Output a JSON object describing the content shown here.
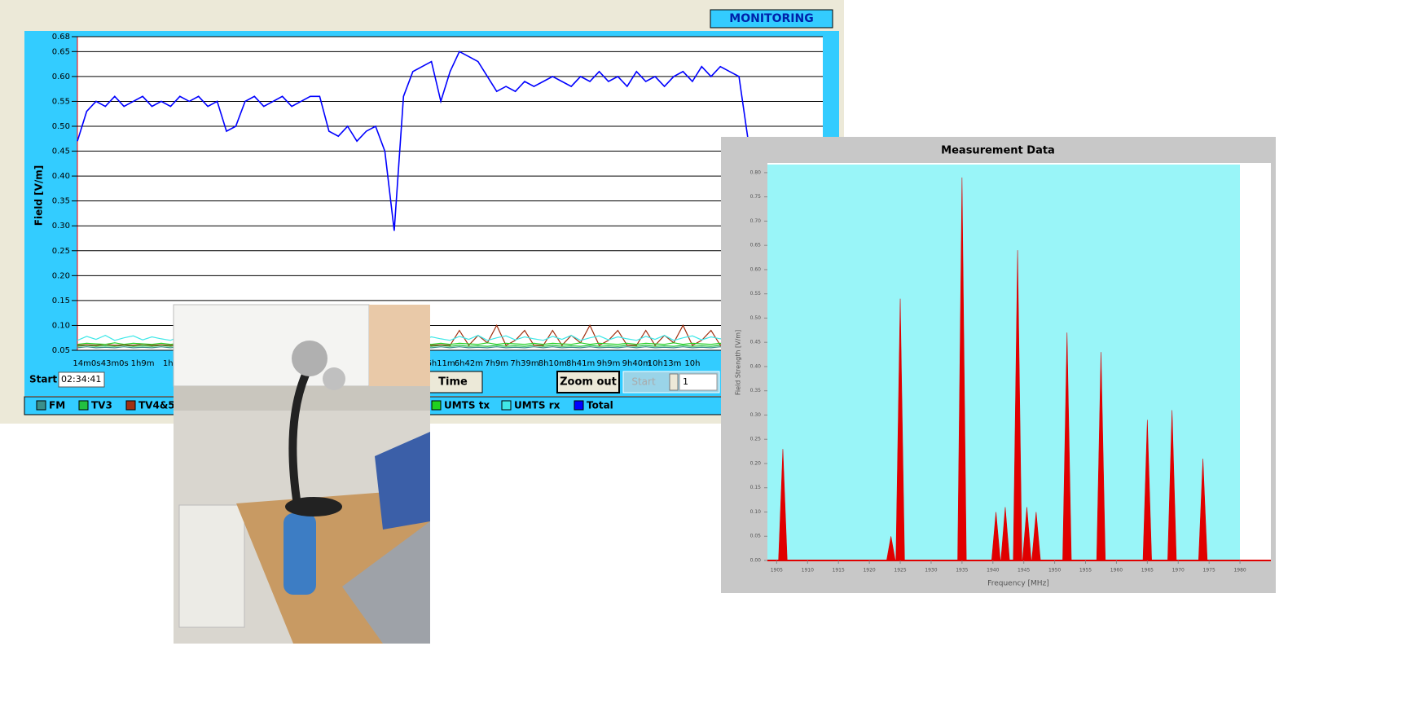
{
  "monitor": {
    "title": "MONITORING",
    "start_label": "Start",
    "start_time": "02:34:41",
    "time_button": "Time",
    "zoom_button": "Zoom out",
    "start_button": "Start",
    "spin_value": "1"
  },
  "chart_data": [
    {
      "type": "line",
      "y_label": "Field [V/m]",
      "categories": [
        null,
        "14m0s",
        null,
        null,
        "43m0s",
        null,
        null,
        "1h9m",
        null,
        null,
        "1h4",
        null,
        null,
        null,
        null,
        null,
        null,
        null,
        null,
        null,
        null,
        null,
        null,
        null,
        null,
        null,
        null,
        null,
        null,
        null,
        null,
        null,
        null,
        null,
        null,
        null,
        null,
        null,
        null,
        "6h11m",
        null,
        null,
        "6h42m",
        null,
        null,
        "7h9m",
        null,
        null,
        "7h39m",
        null,
        null,
        "8h10m",
        null,
        null,
        "8h41m",
        null,
        null,
        "9h9m",
        null,
        null,
        "9h40m",
        null,
        null,
        "10h13m",
        null,
        null,
        "10h",
        null,
        null,
        null,
        null,
        null,
        null,
        null,
        null,
        null,
        null,
        null,
        null,
        null
      ],
      "ylim": [
        0.05,
        0.68
      ],
      "yticks": [
        0.05,
        {
          "value": 0.1,
          "label": "0.10"
        },
        0.15,
        {
          "value": 0.2,
          "label": "0.20"
        },
        0.25,
        {
          "value": 0.3,
          "label": "0.30"
        },
        0.35,
        {
          "value": 0.4,
          "label": "0.40"
        },
        0.45,
        {
          "value": 0.5,
          "label": "0.50"
        },
        0.55,
        {
          "value": 0.6,
          "label": "0.60"
        },
        0.65,
        0.68
      ],
      "grid": true,
      "series": [
        {
          "name": "FM",
          "color": "#3a8f8a",
          "values": [
            0.055,
            0.057,
            0.055,
            0.056,
            0.055,
            0.057,
            0.055,
            0.056,
            0.055,
            0.057,
            0.055,
            0.057,
            0.055,
            0.056,
            0.055,
            0.057,
            0.055,
            0.056,
            0.055,
            0.057,
            0.055,
            0.057,
            0.055,
            0.056,
            0.055,
            0.057,
            0.055,
            0.056,
            0.055,
            0.057,
            0.055,
            0.057,
            0.055,
            0.056,
            0.055,
            0.057,
            0.055,
            0.056,
            0.055,
            0.057,
            0.055,
            0.057,
            0.055,
            0.056,
            0.055,
            0.057,
            0.055,
            0.056,
            0.055,
            0.057,
            0.055,
            0.057,
            0.055,
            0.056,
            0.055,
            0.057,
            0.055,
            0.056,
            0.055,
            0.057,
            0.055,
            0.057,
            0.055,
            0.056,
            0.055,
            0.057,
            0.055,
            0.056,
            0.055,
            0.057,
            0.055,
            0.056,
            0.055,
            null,
            null,
            null,
            null,
            null,
            null,
            null
          ]
        },
        {
          "name": "TV3",
          "color": "#22c040",
          "values": [
            0.058,
            0.06,
            0.058,
            0.059,
            0.058,
            0.06,
            0.058,
            0.059,
            0.058,
            0.06,
            0.058,
            0.06,
            0.058,
            0.059,
            0.058,
            0.06,
            0.058,
            0.059,
            0.058,
            0.06,
            0.058,
            0.06,
            0.058,
            0.059,
            0.058,
            0.06,
            0.058,
            0.059,
            0.058,
            0.06,
            0.058,
            0.06,
            0.058,
            0.059,
            0.058,
            0.06,
            0.058,
            0.059,
            0.058,
            0.06,
            0.058,
            0.06,
            0.058,
            0.059,
            0.058,
            0.06,
            0.058,
            0.059,
            0.058,
            0.06,
            0.058,
            0.06,
            0.058,
            0.059,
            0.058,
            0.06,
            0.058,
            0.059,
            0.058,
            0.06,
            0.058,
            0.06,
            0.058,
            0.059,
            0.058,
            0.06,
            0.058,
            0.059,
            0.058,
            0.06,
            0.058,
            0.059,
            0.058,
            null,
            null,
            null,
            null,
            null,
            null,
            null
          ]
        },
        {
          "name": "TV4&5",
          "color": "#a03010",
          "values": [
            0.06,
            0.061,
            0.06,
            0.062,
            0.06,
            0.061,
            0.06,
            0.062,
            0.06,
            0.061,
            0.06,
            0.061,
            0.06,
            0.062,
            0.06,
            0.061,
            0.06,
            0.062,
            0.06,
            0.061,
            0.06,
            0.061,
            0.06,
            0.062,
            0.06,
            0.061,
            0.06,
            0.062,
            0.06,
            0.061,
            0.06,
            0.061,
            0.06,
            0.062,
            0.06,
            0.061,
            0.06,
            0.062,
            0.06,
            0.061,
            0.06,
            0.09,
            0.06,
            0.08,
            0.065,
            0.1,
            0.06,
            0.07,
            0.09,
            0.06,
            0.06,
            0.09,
            0.06,
            0.08,
            0.065,
            0.1,
            0.06,
            0.07,
            0.09,
            0.06,
            0.06,
            0.09,
            0.06,
            0.08,
            0.065,
            0.1,
            0.06,
            0.07,
            0.09,
            0.06,
            0.08,
            0.06,
            0.07,
            null,
            null,
            null,
            null,
            null,
            null,
            null
          ]
        },
        {
          "name": "UMTS tx",
          "color": "#20d020",
          "values": [
            0.062,
            0.064,
            0.063,
            0.062,
            0.065,
            0.062,
            0.064,
            0.063,
            0.062,
            0.064,
            0.062,
            0.064,
            0.063,
            0.062,
            0.065,
            0.062,
            0.064,
            0.063,
            0.062,
            0.064,
            0.062,
            0.064,
            0.063,
            0.062,
            0.065,
            0.062,
            0.064,
            0.063,
            0.062,
            0.064,
            0.062,
            0.064,
            0.063,
            0.062,
            0.065,
            0.062,
            0.064,
            0.063,
            0.062,
            0.064,
            0.062,
            0.064,
            0.063,
            0.062,
            0.065,
            0.062,
            0.064,
            0.063,
            0.062,
            0.064,
            0.062,
            0.064,
            0.063,
            0.062,
            0.065,
            0.062,
            0.064,
            0.063,
            0.062,
            0.064,
            0.062,
            0.064,
            0.063,
            0.062,
            0.065,
            0.062,
            0.064,
            0.063,
            0.062,
            0.064,
            0.062,
            0.063,
            0.062,
            null,
            null,
            null,
            null,
            null,
            null,
            null
          ]
        },
        {
          "name": "UMTS rx",
          "color": "#40e8e8",
          "values": [
            0.07,
            0.078,
            0.072,
            0.08,
            0.07,
            0.075,
            0.079,
            0.071,
            0.077,
            0.073,
            0.07,
            0.078,
            0.072,
            0.08,
            0.07,
            0.075,
            0.079,
            0.071,
            0.077,
            0.073,
            0.07,
            0.078,
            0.072,
            0.08,
            0.07,
            0.075,
            0.079,
            0.071,
            0.077,
            0.073,
            0.07,
            0.078,
            0.072,
            0.08,
            0.07,
            0.075,
            0.079,
            0.071,
            0.077,
            0.073,
            0.07,
            0.078,
            0.072,
            0.08,
            0.07,
            0.075,
            0.079,
            0.071,
            0.077,
            0.073,
            0.07,
            0.078,
            0.072,
            0.08,
            0.07,
            0.075,
            0.079,
            0.071,
            0.077,
            0.073,
            0.07,
            0.078,
            0.072,
            0.08,
            0.07,
            0.075,
            0.079,
            0.071,
            0.077,
            0.073,
            0.074,
            0.078,
            0.07,
            null,
            null,
            null,
            null,
            null,
            null,
            null
          ]
        },
        {
          "name": "Total",
          "color": "#0000ff",
          "values": [
            0.47,
            0.53,
            0.55,
            0.54,
            0.56,
            0.54,
            0.55,
            0.56,
            0.54,
            0.55,
            0.54,
            0.56,
            0.55,
            0.56,
            0.54,
            0.55,
            0.49,
            0.5,
            0.55,
            0.56,
            0.54,
            0.55,
            0.56,
            0.54,
            0.55,
            0.56,
            0.56,
            0.49,
            0.48,
            0.5,
            0.47,
            0.49,
            0.5,
            0.45,
            0.29,
            0.56,
            0.61,
            0.62,
            0.63,
            0.55,
            0.61,
            0.65,
            0.64,
            0.63,
            0.6,
            0.57,
            0.58,
            0.57,
            0.59,
            0.58,
            0.59,
            0.6,
            0.59,
            0.58,
            0.6,
            0.59,
            0.61,
            0.59,
            0.6,
            0.58,
            0.61,
            0.59,
            0.6,
            0.58,
            0.6,
            0.61,
            0.59,
            0.62,
            0.6,
            0.62,
            0.61,
            0.6,
            0.47,
            null,
            null,
            null,
            null,
            null,
            null,
            null
          ]
        }
      ]
    },
    {
      "type": "spike",
      "title": "Measurement Data",
      "x_label": "Frequency [MHz]",
      "y_label": "Field Strength [V/m]",
      "color": "#e00000",
      "x": [
        1906,
        1923.5,
        1925,
        1935,
        1940.5,
        1942,
        1944,
        1945.5,
        1947,
        1952,
        1957.5,
        1965,
        1969,
        1974
      ],
      "values": [
        0.23,
        0.05,
        0.54,
        0.79,
        0.1,
        0.11,
        0.64,
        0.11,
        0.1,
        0.47,
        0.43,
        0.29,
        0.31,
        0.21
      ],
      "xlim": [
        1903.5,
        1985
      ],
      "xticks": [
        1905,
        1910,
        1915,
        1920,
        1925,
        1930,
        1935,
        1940,
        1945,
        1950,
        1955,
        1960,
        1965,
        1970,
        1975,
        1980
      ],
      "ylim": [
        0,
        0.82
      ],
      "yticks": [
        {
          "value": 0,
          "label": "0.00"
        },
        0.05,
        {
          "value": 0.1,
          "label": "0.10"
        },
        0.15,
        {
          "value": 0.2,
          "label": "0.20"
        },
        0.25,
        {
          "value": 0.3,
          "label": "0.30"
        },
        0.35,
        {
          "value": 0.4,
          "label": "0.40"
        },
        0.45,
        {
          "value": 0.5,
          "label": "0.50"
        },
        0.55,
        {
          "value": 0.6,
          "label": "0.60"
        },
        0.65,
        {
          "value": 0.7,
          "label": "0.70"
        },
        0.75,
        {
          "value": 0.8,
          "label": "0.80"
        }
      ]
    }
  ]
}
